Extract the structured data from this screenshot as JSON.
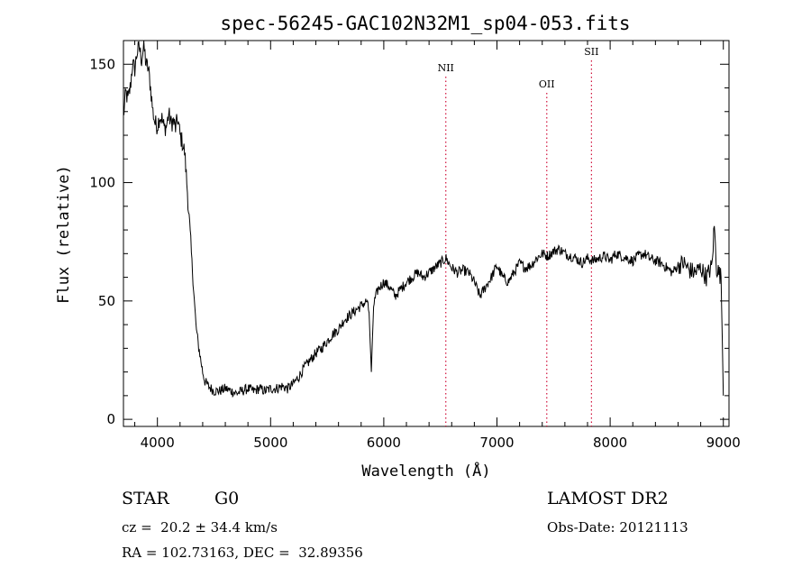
{
  "chart_data": {
    "type": "line",
    "title": "spec-56245-GAC102N32M1_sp04-053.fits",
    "xlabel": "Wavelength (Å)",
    "ylabel": "Flux (relative)",
    "xlim": [
      3700,
      9050
    ],
    "ylim": [
      -3,
      160
    ],
    "x_ticks": [
      4000,
      5000,
      6000,
      7000,
      8000,
      9000
    ],
    "y_ticks": [
      0,
      50,
      100,
      150
    ],
    "grid": false,
    "series": [
      {
        "color": "#000000",
        "x": [
          3700,
          3720,
          3740,
          3760,
          3780,
          3800,
          3820,
          3840,
          3860,
          3880,
          3900,
          3920,
          3940,
          3960,
          3980,
          4000,
          4020,
          4040,
          4060,
          4080,
          4100,
          4120,
          4140,
          4160,
          4180,
          4200,
          4220,
          4240,
          4260,
          4280,
          4300,
          4320,
          4340,
          4360,
          4380,
          4400,
          4420,
          4450,
          4500,
          4550,
          4600,
          4650,
          4700,
          4750,
          4800,
          4850,
          4900,
          4950,
          5000,
          5050,
          5100,
          5150,
          5200,
          5250,
          5300,
          5350,
          5400,
          5450,
          5500,
          5550,
          5600,
          5650,
          5700,
          5750,
          5800,
          5850,
          5870,
          5890,
          5910,
          5930,
          5950,
          6000,
          6050,
          6100,
          6150,
          6200,
          6250,
          6300,
          6350,
          6400,
          6450,
          6500,
          6550,
          6600,
          6650,
          6700,
          6750,
          6800,
          6850,
          6900,
          6950,
          7000,
          7050,
          7100,
          7150,
          7200,
          7250,
          7300,
          7350,
          7400,
          7450,
          7500,
          7550,
          7600,
          7650,
          7700,
          7750,
          7800,
          7850,
          7900,
          7950,
          8000,
          8050,
          8100,
          8150,
          8200,
          8250,
          8300,
          8350,
          8400,
          8450,
          8500,
          8550,
          8600,
          8650,
          8700,
          8750,
          8800,
          8850,
          8900,
          8920,
          8940,
          8960,
          8980,
          9000
        ],
        "y": [
          128,
          138,
          135,
          140,
          150,
          148,
          155,
          157,
          152,
          158,
          150,
          148,
          140,
          130,
          125,
          124,
          128,
          127,
          123,
          124,
          129,
          125,
          126,
          123,
          127,
          120,
          117,
          113,
          100,
          85,
          70,
          55,
          40,
          32,
          26,
          20,
          16,
          14,
          12,
          12,
          13,
          12,
          11,
          12,
          13,
          12,
          13,
          12,
          13,
          13,
          14,
          13,
          15,
          18,
          22,
          25,
          28,
          30,
          33,
          36,
          38,
          42,
          44,
          46,
          48,
          50,
          45,
          20,
          48,
          52,
          55,
          58,
          56,
          52,
          55,
          58,
          60,
          62,
          60,
          62,
          64,
          66,
          68,
          64,
          62,
          63,
          62,
          58,
          52,
          56,
          60,
          65,
          60,
          58,
          62,
          66,
          64,
          65,
          68,
          70,
          69,
          71,
          72,
          70,
          69,
          68,
          66,
          68,
          67,
          68,
          69,
          67,
          70,
          69,
          68,
          67,
          69,
          70,
          68,
          67,
          66,
          64,
          62,
          65,
          66,
          63,
          62,
          64,
          60,
          65,
          82,
          64,
          62,
          60,
          10
        ]
      }
    ],
    "emission_lines": [
      {
        "label": "NII",
        "x": 6548
      },
      {
        "label": "OII",
        "x": 7440
      },
      {
        "label": "SII",
        "x": 7835
      }
    ]
  },
  "info": {
    "object_class": "STAR",
    "subclass": "G0",
    "survey": "LAMOST DR2",
    "redshift": "cz =  20.2 ± 34.4 km/s",
    "obs_date": "Obs-Date: 20121113",
    "coords": "RA = 102.73163, DEC =  32.89356"
  }
}
